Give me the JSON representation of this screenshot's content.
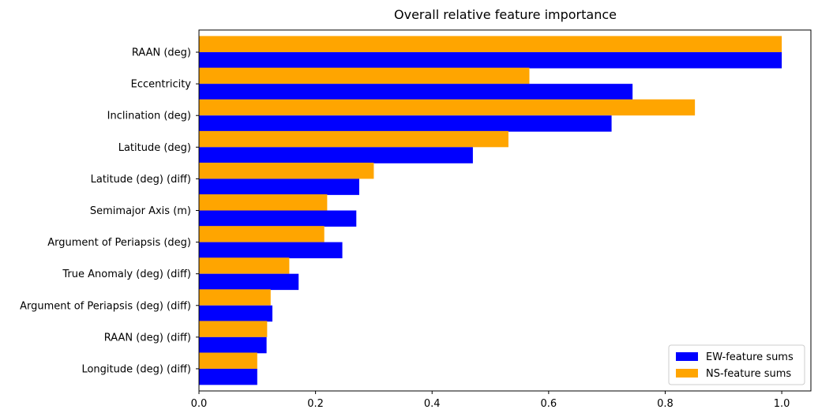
{
  "chart_data": {
    "type": "bar",
    "orientation": "horizontal",
    "title": "Overall relative feature importance",
    "xlabel": "",
    "ylabel": "",
    "xlim": [
      0,
      1.05
    ],
    "xticks": [
      "0.0",
      "0.2",
      "0.4",
      "0.6",
      "0.8",
      "1.0"
    ],
    "grid": false,
    "legend_position": "lower-right",
    "categories": [
      "RAAN (deg)",
      "Eccentricity",
      "Inclination (deg)",
      "Latitude (deg)",
      "Latitude (deg) (diff)",
      "Semimajor Axis (m)",
      "Argument of Periapsis (deg)",
      "True Anomaly (deg) (diff)",
      "Argument of Periapsis (deg) (diff)",
      "RAAN (deg) (diff)",
      "Longitude (deg) (diff)"
    ],
    "series": [
      {
        "name": "EW-feature sums",
        "color": "#0000ff",
        "values": [
          1.0,
          0.744,
          0.708,
          0.47,
          0.275,
          0.27,
          0.246,
          0.171,
          0.126,
          0.116,
          0.1
        ]
      },
      {
        "name": "NS-feature sums",
        "color": "#ffa500",
        "values": [
          1.0,
          0.567,
          0.851,
          0.531,
          0.3,
          0.22,
          0.215,
          0.155,
          0.123,
          0.117,
          0.1
        ]
      }
    ]
  }
}
